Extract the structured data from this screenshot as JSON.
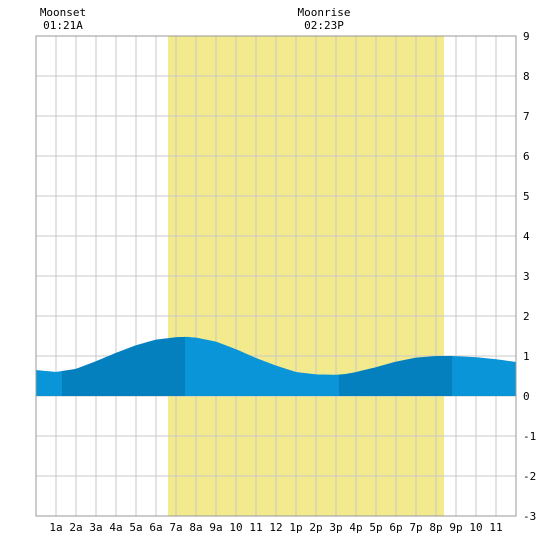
{
  "chart_data": {
    "type": "area",
    "title": "",
    "xlabel": "",
    "ylabel": "",
    "grid": true,
    "x_tick_labels": [
      "1a",
      "2a",
      "3a",
      "4a",
      "5a",
      "6a",
      "7a",
      "8a",
      "9a",
      "10",
      "11",
      "12",
      "1p",
      "2p",
      "3p",
      "4p",
      "5p",
      "6p",
      "7p",
      "8p",
      "9p",
      "10",
      "11"
    ],
    "x_range_hours": [
      0,
      24
    ],
    "ylim": [
      -3,
      9
    ],
    "y_ticks": [
      -3,
      -2,
      -1,
      0,
      1,
      2,
      3,
      4,
      5,
      6,
      7,
      8,
      9
    ],
    "daylight_hours": [
      6.6,
      20.4
    ],
    "band_hours": [
      1.3,
      7.45,
      15.15,
      20.8
    ],
    "series": [
      {
        "x": [
          0,
          1,
          2,
          3,
          4,
          5,
          6,
          7,
          7.5,
          8,
          9,
          10,
          11,
          12,
          13,
          14,
          15,
          15.5,
          16,
          17,
          18,
          19,
          20,
          20.8,
          22,
          23,
          24
        ],
        "y": [
          0.65,
          0.6,
          0.68,
          0.87,
          1.08,
          1.27,
          1.41,
          1.47,
          1.48,
          1.46,
          1.36,
          1.17,
          0.95,
          0.76,
          0.6,
          0.54,
          0.53,
          0.55,
          0.6,
          0.72,
          0.86,
          0.96,
          1.0,
          1.0,
          0.97,
          0.92,
          0.85
        ]
      }
    ],
    "colors": {
      "daylight": "#f2ea8c",
      "tide_light": "#0a95d8",
      "tide_dark": "#0580bf",
      "grid": "#c8c8c8"
    },
    "annotations": [
      {
        "label": "Moonset",
        "time": "01:21A",
        "hour": 1.35
      },
      {
        "label": "Moonrise",
        "time": "02:23P",
        "hour": 14.4
      }
    ]
  }
}
